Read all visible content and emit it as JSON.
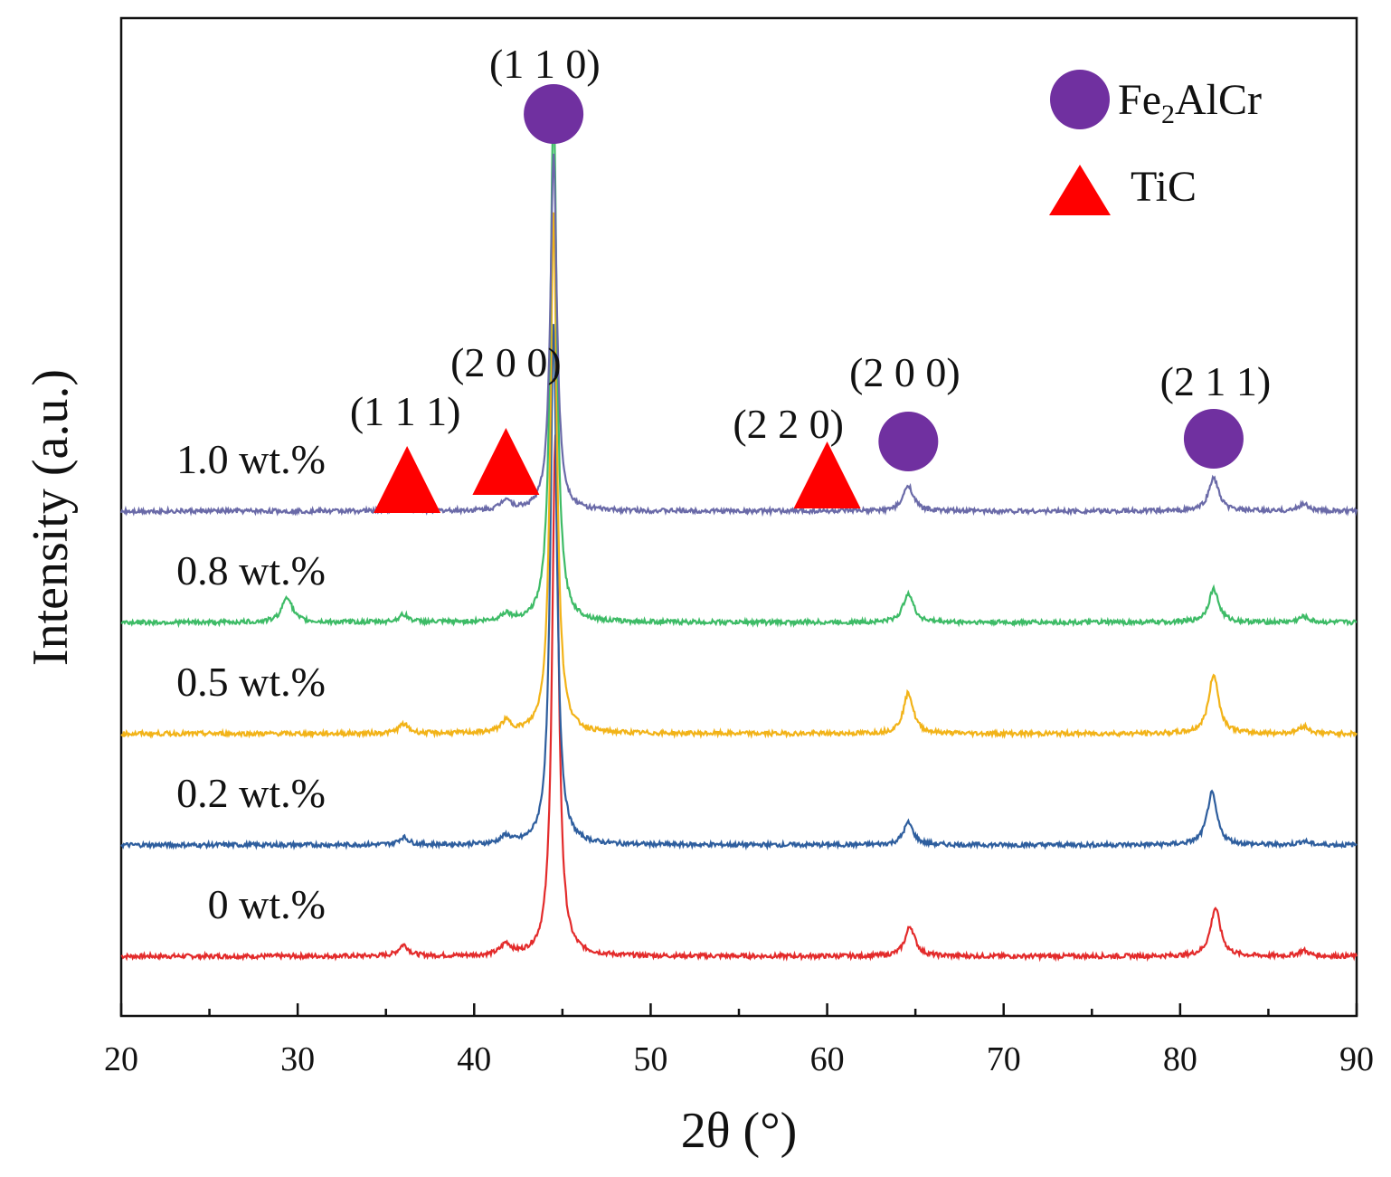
{
  "chart_data": {
    "type": "line",
    "title": "",
    "xlabel": "2θ (°)",
    "ylabel": "Intensity (a.u.)",
    "xlim": [
      20,
      90
    ],
    "x_ticks": [
      20,
      30,
      40,
      50,
      60,
      70,
      80,
      90
    ],
    "grid": false,
    "legend_position": "top-right",
    "legend": [
      {
        "marker": "circle",
        "label_main": "Fe",
        "label_sub": "2",
        "label_rest": "AlCr",
        "color": "#7030a0"
      },
      {
        "marker": "triangle",
        "label": "TiC",
        "color": "#ff0000"
      }
    ],
    "series": [
      {
        "name": "0 wt.%",
        "color": "#e32b2b",
        "baseline_au": 0,
        "peaks": [
          {
            "x": 36.0,
            "h": 0.3
          },
          {
            "x": 41.8,
            "h": 0.3
          },
          {
            "x": 44.6,
            "h": 14.0
          },
          {
            "x": 64.7,
            "h": 0.8
          },
          {
            "x": 82.0,
            "h": 1.3
          },
          {
            "x": 87.0,
            "h": 0.15
          }
        ]
      },
      {
        "name": "0.2 wt.%",
        "color": "#2e5e9e",
        "baseline_au": 3,
        "peaks": [
          {
            "x": 36.0,
            "h": 0.2
          },
          {
            "x": 41.8,
            "h": 0.2
          },
          {
            "x": 44.5,
            "h": 14.0
          },
          {
            "x": 64.6,
            "h": 0.6
          },
          {
            "x": 81.8,
            "h": 1.4
          },
          {
            "x": 87.0,
            "h": 0.1
          }
        ]
      },
      {
        "name": "0.5 wt.%",
        "color": "#f2b318",
        "baseline_au": 6,
        "peaks": [
          {
            "x": 36.0,
            "h": 0.25
          },
          {
            "x": 41.8,
            "h": 0.3
          },
          {
            "x": 44.5,
            "h": 14.0
          },
          {
            "x": 64.6,
            "h": 1.1
          },
          {
            "x": 81.9,
            "h": 1.6
          },
          {
            "x": 87.0,
            "h": 0.2
          }
        ]
      },
      {
        "name": "0.8 wt.%",
        "color": "#3dbb66",
        "baseline_au": 9,
        "peaks": [
          {
            "x": 29.4,
            "h": 0.7
          },
          {
            "x": 36.0,
            "h": 0.2
          },
          {
            "x": 41.8,
            "h": 0.2
          },
          {
            "x": 44.5,
            "h": 14.0
          },
          {
            "x": 64.6,
            "h": 0.8
          },
          {
            "x": 81.9,
            "h": 0.9
          },
          {
            "x": 87.0,
            "h": 0.15
          }
        ]
      },
      {
        "name": "1.0 wt.%",
        "color": "#6a6aa8",
        "baseline_au": 12,
        "peaks": [
          {
            "x": 36.0,
            "h": 0.2
          },
          {
            "x": 41.8,
            "h": 0.3
          },
          {
            "x": 44.5,
            "h": 9.6
          },
          {
            "x": 64.6,
            "h": 0.7
          },
          {
            "x": 81.9,
            "h": 0.9
          },
          {
            "x": 87.0,
            "h": 0.2
          }
        ]
      }
    ],
    "peak_annotations": [
      {
        "label": "(1 1 0)",
        "x": 44.5,
        "phase": "Fe2AlCr",
        "marker": "circle"
      },
      {
        "label": "(2 0 0)",
        "x": 64.6,
        "phase": "Fe2AlCr",
        "marker": "circle"
      },
      {
        "label": "(2 1 1)",
        "x": 81.9,
        "phase": "Fe2AlCr",
        "marker": "circle"
      },
      {
        "label": "(1 1 1)",
        "x": 36.2,
        "phase": "TiC",
        "marker": "triangle"
      },
      {
        "label": "(2 0 0)",
        "x": 41.8,
        "phase": "TiC",
        "marker": "triangle"
      },
      {
        "label": "(2 2 0)",
        "x": 60.0,
        "phase": "TiC",
        "marker": "triangle"
      }
    ]
  }
}
